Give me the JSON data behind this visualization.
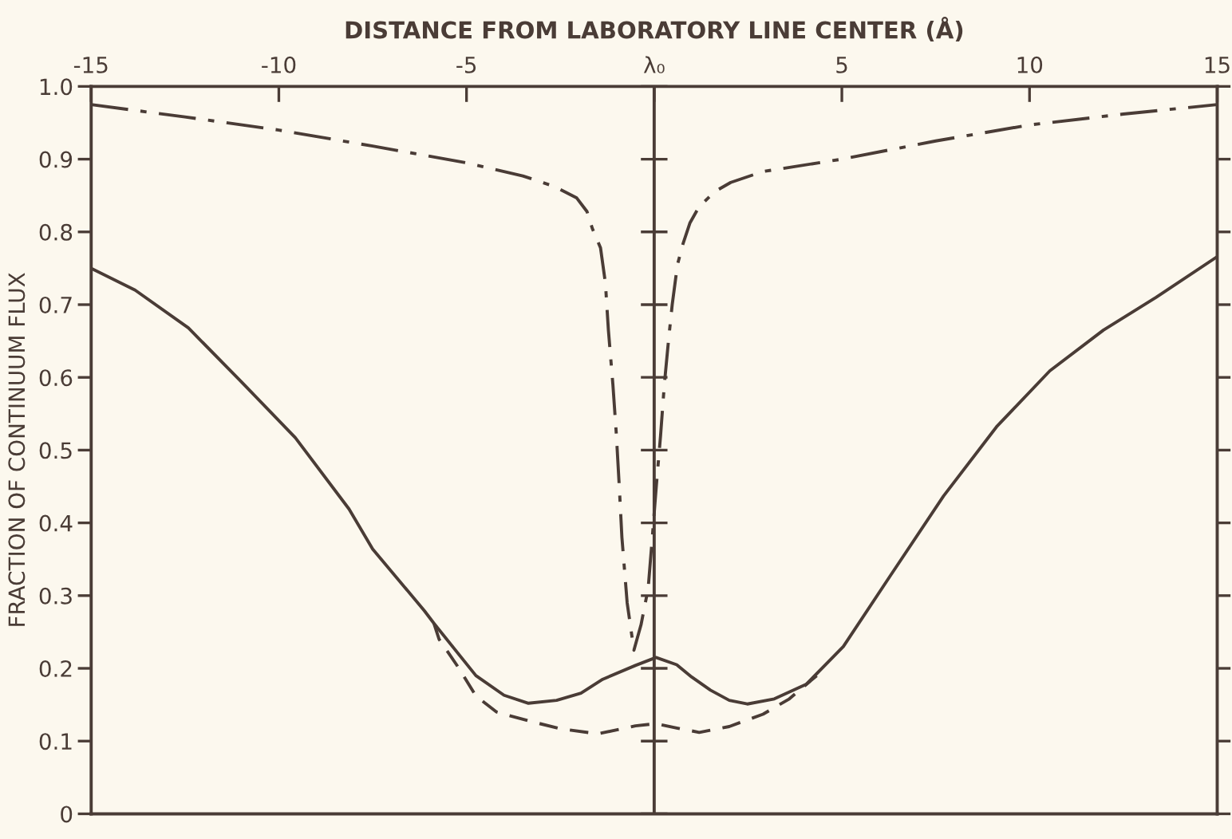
{
  "chart_data": {
    "type": "line",
    "xlabel": "DISTANCE FROM LABORATORY LINE CENTER (Å)",
    "ylabel": "FRACTION OF CONTINUUM FLUX",
    "xlim": [
      -15,
      15
    ],
    "xticks": [
      -15,
      -10,
      -5,
      {
        "value": 0,
        "label": "λ₀"
      },
      5,
      10,
      15
    ],
    "ylim": [
      0,
      1
    ],
    "yticks": [
      0,
      0.1,
      0.2,
      0.3,
      0.4,
      0.5,
      0.6,
      0.7,
      0.8,
      0.9,
      {
        "value": 1,
        "label": "1.0"
      }
    ],
    "ref_lines": [
      {
        "axis": "x",
        "value": 0,
        "color": "#4a3c36"
      }
    ],
    "series": [
      {
        "color": "#4a3c36",
        "line_style": "dashdot",
        "x": [
          -15,
          -12.5,
          -10,
          -7.5,
          -5,
          -3.5,
          -2.64,
          -2.07,
          -1.79,
          -1.65,
          -1.43,
          -1.3,
          -1.22,
          -1.1,
          -1.01,
          -0.93,
          -0.86,
          -0.72,
          -0.54,
          -0.35,
          -0.16,
          -0.05,
          0.06,
          0.17,
          0.27,
          0.38,
          0.48,
          0.62,
          0.77,
          0.95,
          1.19,
          1.6,
          2.04,
          2.9,
          5,
          7.5,
          10,
          12.5,
          15
        ],
        "values": [
          0.975,
          0.958,
          0.94,
          0.918,
          0.895,
          0.877,
          0.862,
          0.847,
          0.828,
          0.805,
          0.778,
          0.73,
          0.665,
          0.59,
          0.523,
          0.45,
          0.38,
          0.29,
          0.225,
          0.26,
          0.31,
          0.38,
          0.453,
          0.52,
          0.59,
          0.65,
          0.7,
          0.755,
          0.784,
          0.812,
          0.834,
          0.855,
          0.868,
          0.883,
          0.9,
          0.925,
          0.947,
          0.962,
          0.975
        ]
      },
      {
        "color": "#4a3c36",
        "line_style": "solid",
        "x": [
          -15,
          -13.83,
          -12.41,
          -10.98,
          -9.56,
          -8.13,
          -7.5,
          -6.12,
          -5.87,
          -4.75,
          -4,
          -3.35,
          -2.6,
          -1.95,
          -1.37,
          -0.5,
          0.05,
          0.6,
          1,
          1.5,
          2,
          2.48,
          3.2,
          4.05,
          5.04,
          6.3,
          7.71,
          9.12,
          10.54,
          11.97,
          13.37,
          15
        ],
        "values": [
          0.75,
          0.72,
          0.668,
          0.593,
          0.517,
          0.419,
          0.364,
          0.279,
          0.262,
          0.19,
          0.163,
          0.152,
          0.156,
          0.166,
          0.185,
          0.204,
          0.215,
          0.205,
          0.188,
          0.17,
          0.156,
          0.151,
          0.158,
          0.178,
          0.23,
          0.328,
          0.437,
          0.532,
          0.609,
          0.665,
          0.71,
          0.766
        ]
      },
      {
        "color": "#4a3c36",
        "line_style": "dashed",
        "x": [
          -5.87,
          -5.73,
          -5.2,
          -4.75,
          -4.2,
          -3.36,
          -2.5,
          -1.5,
          -0.5,
          0.05,
          0.6,
          1.2,
          2,
          2.9,
          3.6,
          4.33
        ],
        "values": [
          0.262,
          0.24,
          0.2,
          0.162,
          0.14,
          0.128,
          0.117,
          0.11,
          0.121,
          0.124,
          0.118,
          0.112,
          0.12,
          0.137,
          0.158,
          0.19
        ]
      }
    ]
  }
}
